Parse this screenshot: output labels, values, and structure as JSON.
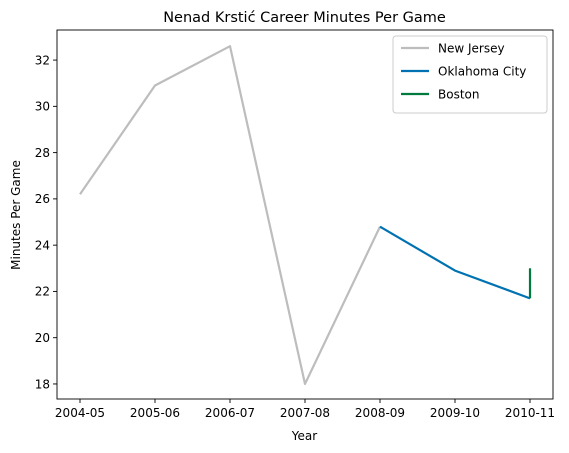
{
  "chart_data": {
    "type": "line",
    "title": "Nenad Krstić Career Minutes Per Game",
    "xlabel": "Year",
    "ylabel": "Minutes Per Game",
    "categories": [
      "2004-05",
      "2005-06",
      "2006-07",
      "2007-08",
      "2008-09",
      "2009-10",
      "2010-11"
    ],
    "ylim": [
      17.35,
      33.3
    ],
    "yticks": [
      18,
      20,
      22,
      24,
      26,
      28,
      30,
      32
    ],
    "grid": false,
    "legend_position": "top-right",
    "series": [
      {
        "name": "New Jersey",
        "color": "#bdbdbd",
        "points": [
          {
            "x": "2004-05",
            "y": 26.2
          },
          {
            "x": "2005-06",
            "y": 30.9
          },
          {
            "x": "2006-07",
            "y": 32.6
          },
          {
            "x": "2007-08",
            "y": 18.0
          },
          {
            "x": "2008-09",
            "y": 24.8
          }
        ]
      },
      {
        "name": "Oklahoma City",
        "color": "#0072b2",
        "points": [
          {
            "x": "2008-09",
            "y": 24.8
          },
          {
            "x": "2009-10",
            "y": 22.9
          },
          {
            "x": "2010-11",
            "y": 21.7
          }
        ]
      },
      {
        "name": "Boston",
        "color": "#007a3d",
        "points": [
          {
            "x": "2010-11",
            "y": 21.7
          },
          {
            "x": "2010-11",
            "y": 23.0
          }
        ]
      }
    ]
  }
}
